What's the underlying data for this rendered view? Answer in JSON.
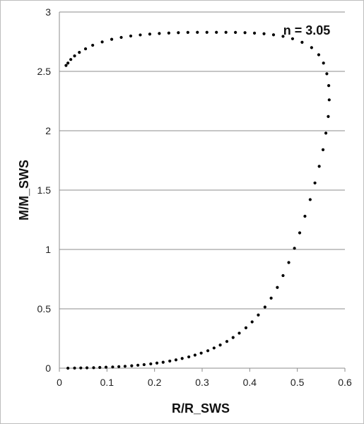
{
  "chart_data": {
    "type": "scatter",
    "title": "",
    "xlabel": "R/R_SWS",
    "ylabel": "M/M_SWS",
    "xlim": [
      0,
      0.6
    ],
    "ylim": [
      0,
      3
    ],
    "x_ticks": [
      "0",
      "0.1",
      "0.2",
      "0.3",
      "0.4",
      "0.5",
      "0.6"
    ],
    "y_ticks": [
      "0",
      "0.5",
      "1",
      "1.5",
      "2",
      "2.5",
      "3"
    ],
    "grid": "horizontal",
    "legend": "none",
    "annotation": "n = 3.05",
    "marker_color": "#000000",
    "series": [
      {
        "points": [
          [
            0.018,
            0.0
          ],
          [
            0.032,
            0.001
          ],
          [
            0.045,
            0.002
          ],
          [
            0.058,
            0.003
          ],
          [
            0.072,
            0.004
          ],
          [
            0.085,
            0.006
          ],
          [
            0.098,
            0.008
          ],
          [
            0.112,
            0.01
          ],
          [
            0.125,
            0.013
          ],
          [
            0.138,
            0.016
          ],
          [
            0.152,
            0.02
          ],
          [
            0.165,
            0.025
          ],
          [
            0.178,
            0.03
          ],
          [
            0.192,
            0.036
          ],
          [
            0.205,
            0.043
          ],
          [
            0.218,
            0.05
          ],
          [
            0.232,
            0.06
          ],
          [
            0.245,
            0.07
          ],
          [
            0.258,
            0.082
          ],
          [
            0.272,
            0.095
          ],
          [
            0.285,
            0.11
          ],
          [
            0.298,
            0.127
          ],
          [
            0.312,
            0.147
          ],
          [
            0.325,
            0.17
          ],
          [
            0.338,
            0.195
          ],
          [
            0.352,
            0.225
          ],
          [
            0.365,
            0.258
          ],
          [
            0.378,
            0.295
          ],
          [
            0.392,
            0.34
          ],
          [
            0.405,
            0.39
          ],
          [
            0.418,
            0.448
          ],
          [
            0.432,
            0.515
          ],
          [
            0.445,
            0.59
          ],
          [
            0.458,
            0.68
          ],
          [
            0.47,
            0.78
          ],
          [
            0.482,
            0.89
          ],
          [
            0.494,
            1.01
          ],
          [
            0.505,
            1.14
          ],
          [
            0.516,
            1.28
          ],
          [
            0.527,
            1.42
          ],
          [
            0.537,
            1.56
          ],
          [
            0.546,
            1.7
          ],
          [
            0.554,
            1.84
          ],
          [
            0.56,
            1.98
          ],
          [
            0.565,
            2.12
          ],
          [
            0.567,
            2.26
          ],
          [
            0.566,
            2.38
          ],
          [
            0.562,
            2.48
          ],
          [
            0.555,
            2.57
          ],
          [
            0.545,
            2.64
          ],
          [
            0.53,
            2.7
          ],
          [
            0.51,
            2.745
          ],
          [
            0.49,
            2.775
          ],
          [
            0.47,
            2.795
          ],
          [
            0.45,
            2.808
          ],
          [
            0.43,
            2.817
          ],
          [
            0.41,
            2.822
          ],
          [
            0.39,
            2.826
          ],
          [
            0.37,
            2.828
          ],
          [
            0.35,
            2.829
          ],
          [
            0.33,
            2.829
          ],
          [
            0.31,
            2.829
          ],
          [
            0.29,
            2.829
          ],
          [
            0.27,
            2.828
          ],
          [
            0.25,
            2.826
          ],
          [
            0.23,
            2.823
          ],
          [
            0.21,
            2.819
          ],
          [
            0.19,
            2.814
          ],
          [
            0.17,
            2.807
          ],
          [
            0.15,
            2.798
          ],
          [
            0.13,
            2.786
          ],
          [
            0.11,
            2.77
          ],
          [
            0.09,
            2.748
          ],
          [
            0.07,
            2.72
          ],
          [
            0.055,
            2.69
          ],
          [
            0.042,
            2.66
          ],
          [
            0.032,
            2.63
          ],
          [
            0.024,
            2.6
          ],
          [
            0.018,
            2.57
          ],
          [
            0.014,
            2.55
          ]
        ]
      }
    ]
  }
}
